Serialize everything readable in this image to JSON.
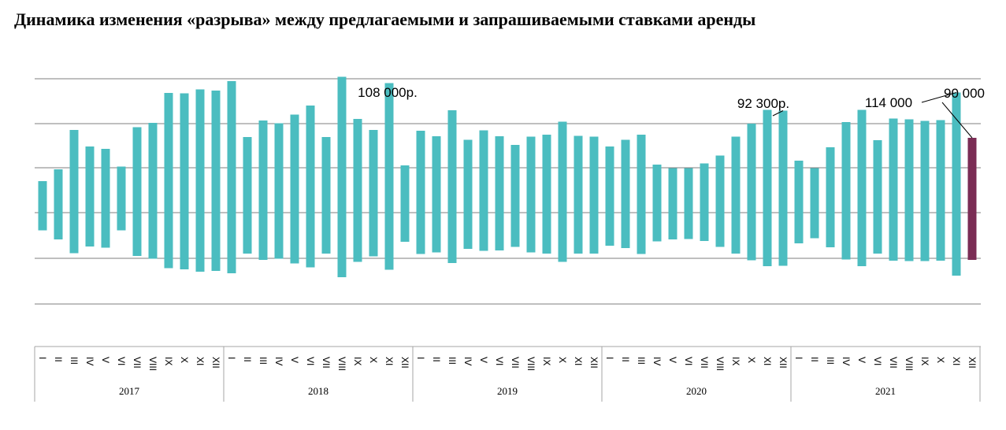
{
  "title": "Динамика изменения «разрыва» между предлагаемыми и запрашиваемыми ставками аренды",
  "colors": {
    "bar": "#4bbdc0",
    "highlight": "#7b2d55",
    "grid": "#7f7f7f"
  },
  "chart_data": {
    "type": "bar",
    "subtype": "floating-range",
    "title": "Динамика изменения «разрыва» между предлагаемыми и запрашиваемыми ставками аренды",
    "xlabel": "",
    "ylabel": "",
    "y_tick_labels_shown": false,
    "grid": true,
    "legend": "none",
    "months": [
      "I",
      "II",
      "III",
      "IV",
      "V",
      "VI",
      "VII",
      "VIII",
      "IX",
      "X",
      "XI",
      "XII"
    ],
    "years": [
      "2017",
      "2018",
      "2019",
      "2020",
      "2021"
    ],
    "ranges": [
      [
        -45,
        80
      ],
      [
        -68,
        110
      ],
      [
        -103,
        210
      ],
      [
        -86,
        168
      ],
      [
        -89,
        162
      ],
      [
        -45,
        117
      ],
      [
        -110,
        217
      ],
      [
        -117,
        228
      ],
      [
        -141,
        304
      ],
      [
        -144,
        303
      ],
      [
        -150,
        313
      ],
      [
        -148,
        310
      ],
      [
        -154,
        334
      ],
      [
        -104,
        192
      ],
      [
        -120,
        234
      ],
      [
        -117,
        227
      ],
      [
        -129,
        249
      ],
      [
        -139,
        272
      ],
      [
        -104,
        192
      ],
      [
        -164,
        345
      ],
      [
        -125,
        238
      ],
      [
        -111,
        210
      ],
      [
        -145,
        329
      ],
      [
        -74,
        120
      ],
      [
        -105,
        208
      ],
      [
        -101,
        194
      ],
      [
        -128,
        260
      ],
      [
        -92,
        185
      ],
      [
        -97,
        209
      ],
      [
        -96,
        194
      ],
      [
        -87,
        172
      ],
      [
        -101,
        193
      ],
      [
        -104,
        198
      ],
      [
        -125,
        231
      ],
      [
        -104,
        195
      ],
      [
        -104,
        193
      ],
      [
        -84,
        168
      ],
      [
        -90,
        185
      ],
      [
        -105,
        198
      ],
      [
        -73,
        122
      ],
      [
        -68,
        113
      ],
      [
        -67,
        113
      ],
      [
        -72,
        125
      ],
      [
        -87,
        145
      ],
      [
        -104,
        193
      ],
      [
        -121,
        226
      ],
      [
        -136,
        261
      ],
      [
        -135,
        259
      ],
      [
        -78,
        132
      ],
      [
        -65,
        113
      ],
      [
        -88,
        166
      ],
      [
        -119,
        230
      ],
      [
        -136,
        261
      ],
      [
        -104,
        184
      ],
      [
        -122,
        239
      ],
      [
        -123,
        237
      ],
      [
        -123,
        233
      ],
      [
        -122,
        235
      ],
      [
        -160,
        305
      ],
      [
        -120,
        190
      ]
    ],
    "annotations": [
      {
        "index": 22,
        "text": "108 000р."
      },
      {
        "index": 47,
        "text": "92 300р."
      },
      {
        "index": 58,
        "text": "114 000"
      },
      {
        "index": 59,
        "text": "90 000"
      }
    ],
    "highlight_index": 59
  }
}
